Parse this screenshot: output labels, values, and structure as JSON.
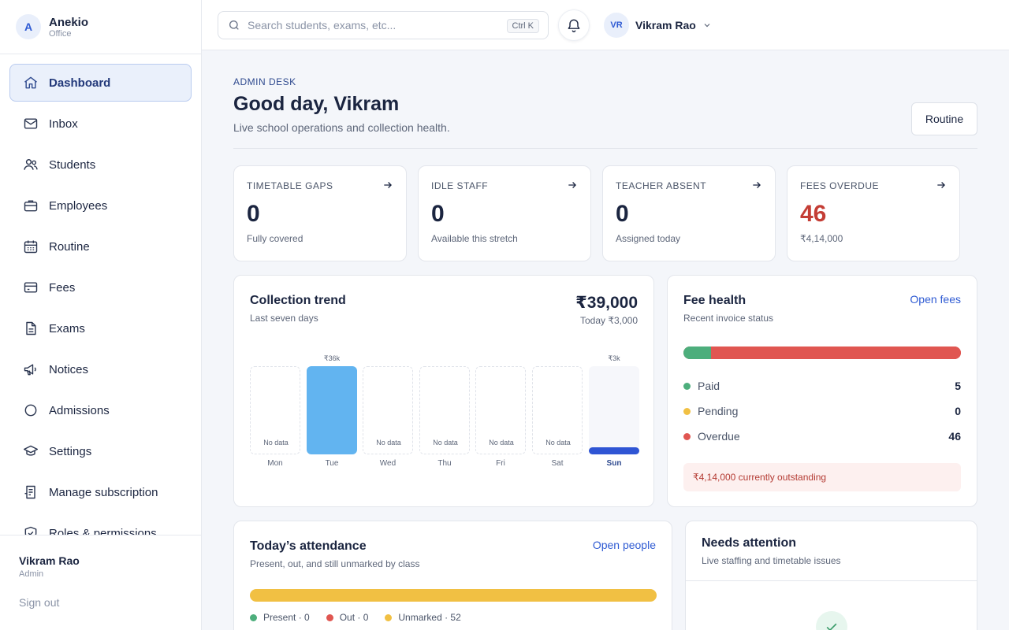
{
  "brand": {
    "logo_letter": "A",
    "name": "Anekio",
    "sub": "Office"
  },
  "nav": {
    "items": [
      {
        "label": "Dashboard",
        "icon": "home-icon",
        "active": true
      },
      {
        "label": "Inbox",
        "icon": "mail-icon"
      },
      {
        "label": "Students",
        "icon": "users-icon"
      },
      {
        "label": "Employees",
        "icon": "briefcase-icon"
      },
      {
        "label": "Routine",
        "icon": "calendar-icon"
      },
      {
        "label": "Fees",
        "icon": "credit-card-icon"
      },
      {
        "label": "Exams",
        "icon": "file-icon"
      },
      {
        "label": "Notices",
        "icon": "megaphone-icon"
      },
      {
        "label": "Admissions",
        "icon": "circle-icon"
      },
      {
        "label": "Settings",
        "icon": "graduation-cap-icon"
      },
      {
        "label": "Manage subscription",
        "icon": "receipt-icon"
      },
      {
        "label": "Roles & permissions",
        "icon": "shield-check-icon"
      }
    ]
  },
  "sidebar_user": {
    "name": "Vikram Rao",
    "role": "Admin",
    "signout": "Sign out"
  },
  "topbar": {
    "search_placeholder": "Search students, exams, etc...",
    "search_shortcut": "Ctrl K",
    "user_initials": "VR",
    "user_name": "Vikram Rao"
  },
  "header": {
    "eyebrow": "ADMIN DESK",
    "greeting": "Good day, Vikram",
    "subtitle": "Live school operations and collection health.",
    "routine_button": "Routine"
  },
  "stats": [
    {
      "title": "TIMETABLE GAPS",
      "value": "0",
      "sub": "Fully covered"
    },
    {
      "title": "IDLE STAFF",
      "value": "0",
      "sub": "Available this stretch"
    },
    {
      "title": "TEACHER ABSENT",
      "value": "0",
      "sub": "Assigned today"
    },
    {
      "title": "FEES OVERDUE",
      "value": "46",
      "sub": "₹4,14,000",
      "alert": true
    }
  ],
  "collection": {
    "title": "Collection trend",
    "subtitle": "Last seven days",
    "total": "₹39,000",
    "today": "Today ₹3,000"
  },
  "chart_data": {
    "type": "bar",
    "categories": [
      "Mon",
      "Tue",
      "Wed",
      "Thu",
      "Fri",
      "Sat",
      "Sun"
    ],
    "values": [
      null,
      36000,
      null,
      null,
      null,
      null,
      3000
    ],
    "labels": [
      "",
      "₹36k",
      "",
      "",
      "",
      "",
      "₹3k"
    ],
    "no_data_text": "No data",
    "highlight_category": "Sun",
    "colors": {
      "bar": "#62b4f0",
      "today": "#2f55d4"
    }
  },
  "fee_health": {
    "title": "Fee health",
    "subtitle": "Recent invoice status",
    "link": "Open fees",
    "legend": [
      {
        "label": "Paid",
        "value": "5",
        "color": "#4dae7c"
      },
      {
        "label": "Pending",
        "value": "0",
        "color": "#f1c043"
      },
      {
        "label": "Overdue",
        "value": "46",
        "color": "#e05651"
      }
    ],
    "outstanding": "₹4,14,000 currently outstanding"
  },
  "attendance": {
    "title": "Today’s attendance",
    "subtitle": "Present, out, and still unmarked by class",
    "link": "Open people",
    "legend": [
      {
        "label": "Present · 0",
        "value": 0,
        "color": "#4dae7c"
      },
      {
        "label": "Out · 0",
        "value": 0,
        "color": "#e05651"
      },
      {
        "label": "Unmarked · 52",
        "value": 52,
        "color": "#f1c043"
      }
    ]
  },
  "needs_attention": {
    "title": "Needs attention",
    "subtitle": "Live staffing and timetable issues"
  }
}
